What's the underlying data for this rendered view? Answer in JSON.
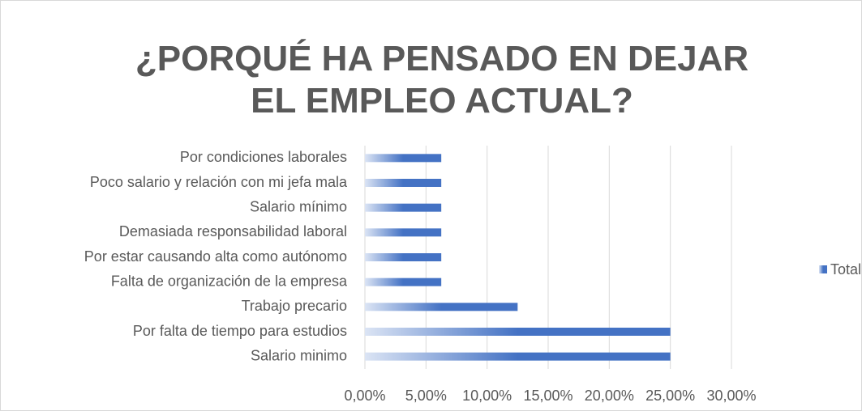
{
  "chart_data": {
    "type": "bar",
    "orientation": "horizontal",
    "title": "¿PORQUÉ HA PENSADO EN DEJAR EL EMPLEO ACTUAL?",
    "categories": [
      "Por condiciones laborales",
      "Poco salario y relación con mi jefa mala",
      "Salario mínimo",
      "Demasiada responsabilidad laboral",
      "Por estar causando alta como autónomo",
      "Falta de organización de la empresa",
      "Trabajo precario",
      "Por falta de tiempo para estudios",
      "Salario minimo"
    ],
    "series": [
      {
        "name": "Total",
        "color": "#4472c4",
        "values": [
          6.25,
          6.25,
          6.25,
          6.25,
          6.25,
          6.25,
          12.5,
          25,
          25
        ]
      }
    ],
    "xlim": [
      0,
      30
    ],
    "xticks": [
      {
        "value": 0,
        "label": "0,00%"
      },
      {
        "value": 5,
        "label": "5,00%"
      },
      {
        "value": 10,
        "label": "10,00%"
      },
      {
        "value": 15,
        "label": "15,00%"
      },
      {
        "value": 20,
        "label": "20,00%"
      },
      {
        "value": 25,
        "label": "25,00%"
      },
      {
        "value": 30,
        "label": "30,00%"
      }
    ],
    "grid": true,
    "legend": "right"
  }
}
